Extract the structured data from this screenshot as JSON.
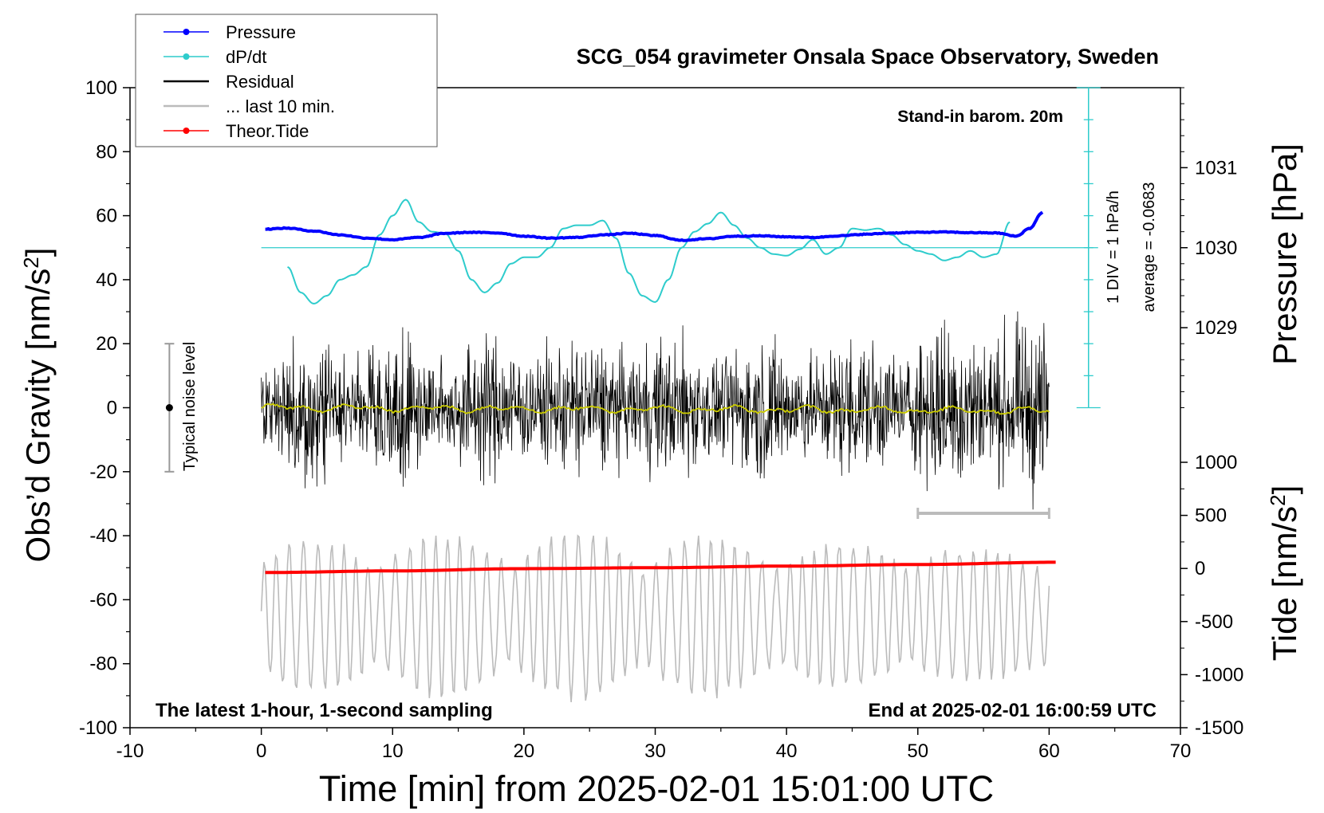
{
  "chart_data": {
    "type": "line",
    "title": "SCG_054 gravimeter Onsala Space Observatory, Sweden",
    "xlabel": "Time [min] from 2025-02-01 15:01:00 UTC",
    "ylabel_main": "Obs’d Gravity [nm/s",
    "ylabel_right_top": "Pressure [hPa]",
    "ylabel_right_bottom": "Tide [nm/s",
    "superscript": "2",
    "closing_bracket": "]",
    "xlim": [
      -10,
      70
    ],
    "ylim": [
      -100,
      100
    ],
    "x_ticks": [
      "-10",
      "0",
      "10",
      "20",
      "30",
      "40",
      "50",
      "60",
      "70"
    ],
    "y_ticks": [
      "100",
      "80",
      "60",
      "40",
      "20",
      "0",
      "-20",
      "-40",
      "-60",
      "-80",
      "-100"
    ],
    "pressure_axis": {
      "range_hPa": [
        1029,
        1031
      ],
      "ticks": [
        "1031",
        "1030",
        "1029"
      ]
    },
    "tide_axis": {
      "range": [
        -1500,
        1000
      ],
      "ticks": [
        "1000",
        "500",
        "0",
        "-500",
        "-1000",
        "-1500"
      ]
    },
    "legend": [
      {
        "label": "Pressure",
        "color": "#0000ff",
        "marker": true
      },
      {
        "label": "dP/dt",
        "color": "#2ecccc",
        "marker": true
      },
      {
        "label": "Residual",
        "color": "#000000",
        "marker": false
      },
      {
        "label": "... last 10 min.",
        "color": "#bbbbbb",
        "marker": false
      },
      {
        "label": "Theor.Tide",
        "color": "#ff0000",
        "marker": true
      }
    ],
    "annotations": {
      "barometer": "Stand-in barom. 20m",
      "div": "1 DIV = 1 hPa/h",
      "average": "average = -0.0683",
      "noise": "Typical noise level",
      "sampling": "The latest 1-hour, 1-second sampling",
      "end": "End at 2025-02-01 16:00:59 UTC"
    },
    "series": {
      "pressure": {
        "name": "Pressure",
        "units": "nm/s2 (plot scale)",
        "color": "#0000ff",
        "x": [
          0.3,
          2,
          4,
          6,
          8,
          10,
          12,
          14,
          16,
          18,
          20,
          22,
          24,
          26,
          28,
          30,
          32,
          34,
          36,
          38,
          40,
          42,
          44,
          46,
          48,
          50,
          52,
          54,
          56,
          57.5,
          58.5,
          59.5
        ],
        "y": [
          55.8,
          56.1,
          55.2,
          54.0,
          53.0,
          52.5,
          53.2,
          54.5,
          54.8,
          54.6,
          53.6,
          53.0,
          53.2,
          54.0,
          54.5,
          53.8,
          52.3,
          52.8,
          53.6,
          53.7,
          53.4,
          53.2,
          53.7,
          54.2,
          54.6,
          54.8,
          54.9,
          54.7,
          54.6,
          53.6,
          56.0,
          61.0
        ]
      },
      "dpdt": {
        "name": "dP/dt",
        "units": "nm/s2 (plot scale)",
        "color": "#2ecccc",
        "x": [
          2,
          3,
          4,
          5,
          6,
          7,
          8,
          9,
          10,
          11,
          12,
          13,
          14,
          15,
          16,
          17,
          18,
          19,
          20,
          21,
          22,
          23,
          24,
          25,
          26,
          27,
          28,
          29,
          30,
          31,
          32,
          33,
          34,
          35,
          36,
          37,
          38,
          39,
          40,
          41,
          42,
          43,
          44,
          45,
          46,
          47,
          48,
          49,
          50,
          51,
          52,
          53,
          54,
          55,
          56,
          57
        ],
        "y": [
          44,
          36,
          32.5,
          35,
          40,
          41.5,
          44,
          54,
          60,
          65,
          58,
          55,
          54.5,
          49,
          40,
          36,
          39,
          45,
          47,
          47,
          50,
          56,
          57,
          57,
          58.5,
          53,
          42,
          35,
          33,
          40,
          50,
          55,
          57.5,
          61,
          57,
          53,
          50,
          48,
          47.5,
          49.5,
          52.5,
          48,
          50,
          56,
          55.5,
          56,
          54,
          51,
          49,
          48,
          46,
          47,
          49,
          47,
          48,
          58
        ]
      },
      "residual": {
        "name": "Residual",
        "units": "nm/s2",
        "color": "#000000",
        "x_range": [
          0,
          60
        ],
        "sampling_s": 1,
        "approx_range": [
          -32,
          33
        ]
      },
      "residual_smoothed": {
        "name": "Residual (smoothed)",
        "units": "nm/s2",
        "color": "#cccc00",
        "x_range": [
          0,
          60
        ],
        "approx_range": [
          -2,
          2
        ]
      },
      "tide": {
        "name": "Theor.Tide",
        "units": "nm/s2",
        "color": "#ff0000",
        "x": [
          0.3,
          10,
          20,
          30,
          40,
          50,
          60.5
        ],
        "y": [
          -51.5,
          -51,
          -50.3,
          -50.0,
          -49.5,
          -49.0,
          -48.3
        ]
      },
      "last10": {
        "name": "... last 10 min.",
        "units": "nm/s2 (offset)",
        "color": "#bbbbbb",
        "x_range": [
          0,
          60
        ],
        "center": -65,
        "approx_range": [
          -92,
          -40
        ],
        "marker_range_x": [
          50,
          60
        ],
        "marker_y": -33
      }
    },
    "noise_bar": {
      "x": -7,
      "range": [
        -20,
        20
      ]
    },
    "pressure_scale": {
      "x": 63,
      "y_range": [
        0,
        100
      ],
      "baseline_y": 50
    }
  }
}
